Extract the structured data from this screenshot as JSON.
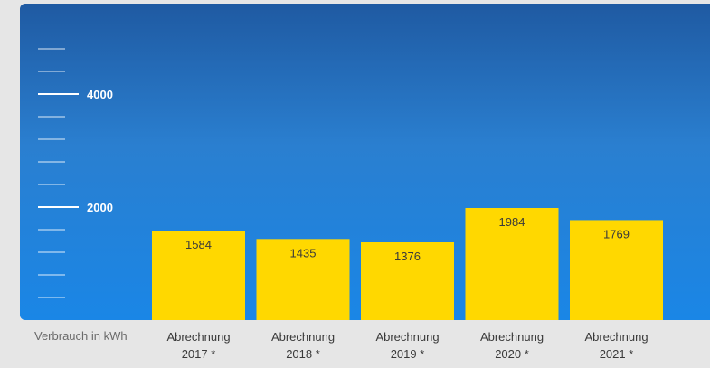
{
  "chart_data": {
    "type": "bar",
    "categories": [
      [
        "Abrechnung",
        "2017 *"
      ],
      [
        "Abrechnung",
        "2018 *"
      ],
      [
        "Abrechnung",
        "2019 *"
      ],
      [
        "Abrechnung",
        "2020 *"
      ],
      [
        "Abrechnung",
        "2021 *"
      ]
    ],
    "values": [
      1584,
      1435,
      1376,
      1984,
      1769
    ],
    "ylabel": "Verbrauch in kWh",
    "ylim": [
      0,
      5000
    ],
    "major_ticks": [
      2000,
      4000
    ],
    "minor_tick_step": 400,
    "colors": {
      "bar": "#ffd800",
      "panel_top": "#1f5aa2",
      "panel_bottom": "#1a86e6",
      "background": "#e6e6e6"
    }
  }
}
